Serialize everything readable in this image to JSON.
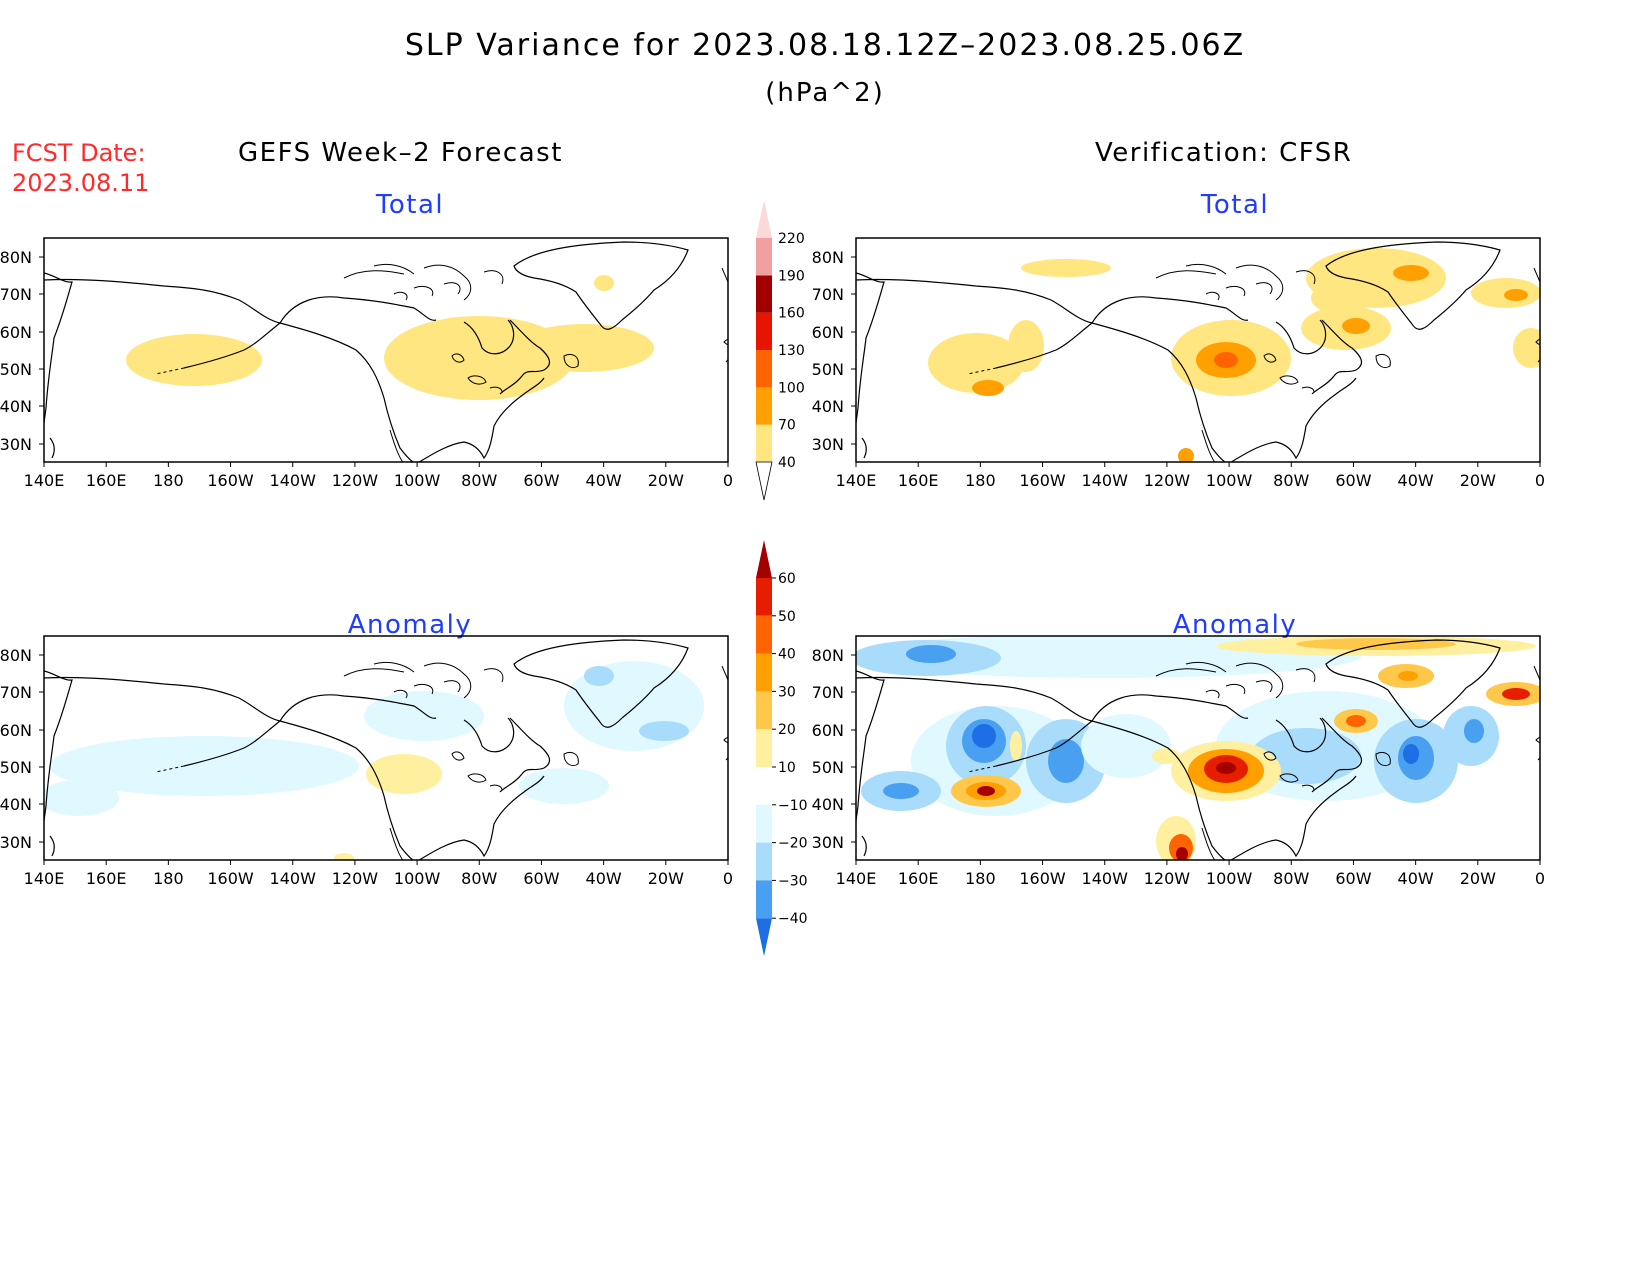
{
  "title": "SLP Variance for 2023.08.18.12Z–2023.08.25.06Z",
  "units": "(hPa^2)",
  "fcst_date": {
    "label": "FCST Date:",
    "value": "2023.08.11"
  },
  "columns": [
    {
      "title": "GEFS Week–2 Forecast"
    },
    {
      "title": "Verification: CFSR"
    }
  ],
  "panels": [
    {
      "id": "forecast-total",
      "subtitle": "Total"
    },
    {
      "id": "verification-total",
      "subtitle": "Total"
    },
    {
      "id": "forecast-anomaly",
      "subtitle": "Anomaly"
    },
    {
      "id": "verification-anomaly",
      "subtitle": "Anomaly"
    }
  ],
  "axes": {
    "lon_labels": [
      "140E",
      "160E",
      "180",
      "160W",
      "140W",
      "120W",
      "100W",
      "80W",
      "60W",
      "40W",
      "20W",
      "0"
    ],
    "lat_labels": [
      "80N",
      "70N",
      "60N",
      "50N",
      "40N",
      "30N"
    ]
  },
  "colorbars": {
    "total": {
      "levels": [
        "40",
        "70",
        "100",
        "130",
        "160",
        "190",
        "220"
      ],
      "colors": [
        "#ffe680",
        "#ffa000",
        "#ff6400",
        "#e61400",
        "#a00000",
        "#f0a0a0",
        "#fcd8d8"
      ]
    },
    "anomaly": {
      "levels": [
        "60",
        "50",
        "40",
        "30",
        "20",
        "10",
        "−10",
        "−20",
        "−30",
        "−40"
      ],
      "warm_colors": [
        "#a50000",
        "#e61e00",
        "#ff6400",
        "#ffa000",
        "#ffc84a",
        "#fff0a0"
      ],
      "cold_colors": [
        "#e0f8ff",
        "#a8dcfa",
        "#4aa0f0",
        "#1e6ee6",
        "#0a46b4"
      ]
    }
  }
}
